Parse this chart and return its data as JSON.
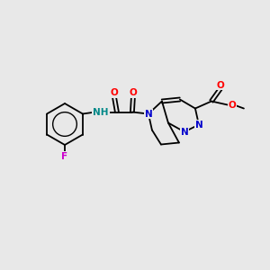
{
  "background_color": "#e8e8e8",
  "atom_colors": {
    "C": "#000000",
    "N": "#0000cc",
    "O": "#ff0000",
    "F": "#cc00cc",
    "H": "#008888"
  },
  "bond_color": "#000000",
  "figsize": [
    3.0,
    3.0
  ],
  "dpi": 100
}
